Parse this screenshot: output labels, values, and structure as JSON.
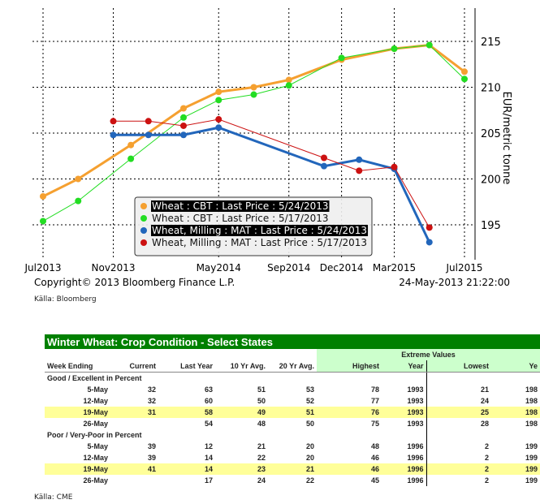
{
  "chart_data": {
    "type": "line",
    "xlabel": "",
    "ylabel": "EUR/metric tonne",
    "ylim": [
      191,
      218
    ],
    "y_ticks": [
      195,
      200,
      205,
      210,
      215
    ],
    "x_ticks": [
      {
        "label": "Jul2013",
        "m": 0
      },
      {
        "label": "Nov2013",
        "m": 4
      },
      {
        "label": "May2014",
        "m": 10
      },
      {
        "label": "Sep2014",
        "m": 14
      },
      {
        "label": "Dec2014",
        "m": 17
      },
      {
        "label": "Mar2015",
        "m": 20
      },
      {
        "label": "Jul2015",
        "m": 24
      }
    ],
    "x_tick_display": [
      "ul2013",
      "Nov2013",
      "May2014",
      "Sep2014",
      "Dec2014",
      "Mar2015",
      "Jul201"
    ],
    "grid": true,
    "legend_position": "bottom-center",
    "series": [
      {
        "name": "Wheat : CBT : Last Price : 5/24/2013",
        "color": "#f5a030",
        "width": 3,
        "highlight": true,
        "x": [
          0,
          2,
          5,
          8,
          10,
          12,
          14,
          17,
          20,
          22,
          24
        ],
        "values": [
          198.1,
          200,
          203.7,
          207.7,
          209.5,
          210,
          210.8,
          213,
          214.2,
          214.6,
          211.7
        ]
      },
      {
        "name": "Wheat : CBT : Last Price : 5/17/2013",
        "color": "#22dd22",
        "width": 1,
        "highlight": false,
        "x": [
          0,
          2,
          5,
          8,
          10,
          12,
          14,
          17,
          20,
          22,
          24
        ],
        "values": [
          195.4,
          197.6,
          202.2,
          206.7,
          208.6,
          209.2,
          210.2,
          213.2,
          214.2,
          214.6,
          210.9
        ]
      },
      {
        "name": "Wheat, Milling : MAT : Last Price : 5/24/2013",
        "color": "#2266bb",
        "width": 3,
        "highlight": true,
        "x": [
          4,
          6,
          8,
          10,
          16,
          18,
          20,
          22
        ],
        "values": [
          204.8,
          204.8,
          204.8,
          205.6,
          201.4,
          202.1,
          201.1,
          193.1
        ]
      },
      {
        "name": "Wheat, Milling : MAT : Last Price : 5/17/2013",
        "color": "#cc1111",
        "width": 1,
        "highlight": false,
        "x": [
          4,
          6,
          8,
          10,
          16,
          18,
          20,
          22
        ],
        "values": [
          206.3,
          206.3,
          205.8,
          206.5,
          202.3,
          200.9,
          201.3,
          194.7
        ]
      }
    ],
    "copyright": "Copyright© 2013 Bloomberg Finance L.P.",
    "timestamp": "24-May-2013 21:22:00"
  },
  "chart_source": "Källa: Bloomberg",
  "table": {
    "title": "Winter Wheat:  Crop Condition - Select States",
    "extreme_header": "Extreme Values",
    "headers": [
      "Week Ending",
      "Current",
      "Last Year",
      "10 Yr Avg.",
      "20 Yr Avg.",
      "Highest",
      "Year",
      "Lowest",
      "Ye"
    ],
    "sections": [
      {
        "label": "Good / Excellent in Percent",
        "rows": [
          {
            "cells": [
              "5-May",
              "32",
              "63",
              "51",
              "53",
              "78",
              "1993",
              "21",
              "198"
            ],
            "hl": false
          },
          {
            "cells": [
              "12-May",
              "32",
              "60",
              "50",
              "52",
              "77",
              "1993",
              "24",
              "198"
            ],
            "hl": false
          },
          {
            "cells": [
              "19-May",
              "31",
              "58",
              "49",
              "51",
              "76",
              "1993",
              "25",
              "198"
            ],
            "hl": true
          },
          {
            "cells": [
              "26-May",
              "",
              "54",
              "48",
              "50",
              "75",
              "1993",
              "28",
              "198"
            ],
            "hl": false
          }
        ]
      },
      {
        "label": "Poor / Very-Poor in Percent",
        "rows": [
          {
            "cells": [
              "5-May",
              "39",
              "12",
              "21",
              "20",
              "48",
              "1996",
              "2",
              "199"
            ],
            "hl": false
          },
          {
            "cells": [
              "12-May",
              "39",
              "14",
              "22",
              "20",
              "46",
              "1996",
              "2",
              "199"
            ],
            "hl": false
          },
          {
            "cells": [
              "19-May",
              "41",
              "14",
              "23",
              "21",
              "46",
              "1996",
              "2",
              "199"
            ],
            "hl": true
          },
          {
            "cells": [
              "26-May",
              "",
              "17",
              "24",
              "22",
              "45",
              "1996",
              "2",
              "199"
            ],
            "hl": false
          }
        ]
      }
    ],
    "source": "Källa: CME"
  }
}
